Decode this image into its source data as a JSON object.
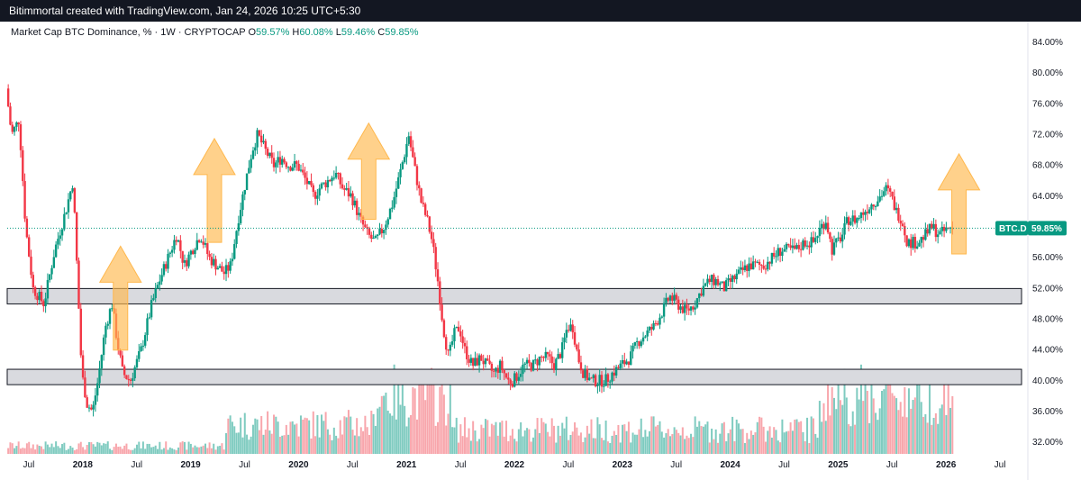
{
  "header": {
    "banner": "Bitimmortal created with TradingView.com, Jan 24, 2026 10:25 UTC+5:30"
  },
  "legend": {
    "symbol_text": "Market Cap BTC Dominance, % · 1W · CRYPTOCAP",
    "o_label": "O",
    "o_value": "59.57%",
    "h_label": "H",
    "h_value": "60.08%",
    "l_label": "L",
    "l_value": "59.46%",
    "c_label": "C",
    "c_value": "59.85%"
  },
  "price_tag": {
    "ticker": "BTC.D",
    "value": "59.85%"
  },
  "colors": {
    "up": "#089981",
    "down": "#f23645",
    "volume_up": "#7fcbc0",
    "volume_down": "#f8a6ac",
    "arrow": "#ffb84d",
    "zone_fill": "#d9dadf",
    "last_price_line": "#089981"
  },
  "chart_data": {
    "type": "candlestick",
    "title": "Market Cap BTC Dominance",
    "ylim": [
      30.5,
      86.0
    ],
    "y_ticks": [
      "84.00%",
      "80.00%",
      "76.00%",
      "72.00%",
      "68.00%",
      "64.00%",
      "60.00%",
      "56.00%",
      "52.00%",
      "48.00%",
      "44.00%",
      "40.00%",
      "36.00%",
      "32.00%"
    ],
    "y_tick_values": [
      84,
      80,
      76,
      72,
      68,
      64,
      60,
      56,
      52,
      48,
      44,
      40,
      36,
      32
    ],
    "x_ticks": [
      {
        "label": "Jul",
        "t": 2017.5,
        "bold": false
      },
      {
        "label": "2018",
        "t": 2018.0,
        "bold": true
      },
      {
        "label": "Jul",
        "t": 2018.5,
        "bold": false
      },
      {
        "label": "2019",
        "t": 2019.0,
        "bold": true
      },
      {
        "label": "Jul",
        "t": 2019.5,
        "bold": false
      },
      {
        "label": "2020",
        "t": 2020.0,
        "bold": true
      },
      {
        "label": "Jul",
        "t": 2020.5,
        "bold": false
      },
      {
        "label": "2021",
        "t": 2021.0,
        "bold": true
      },
      {
        "label": "Jul",
        "t": 2021.5,
        "bold": false
      },
      {
        "label": "2022",
        "t": 2022.0,
        "bold": true
      },
      {
        "label": "Jul",
        "t": 2022.5,
        "bold": false
      },
      {
        "label": "2023",
        "t": 2023.0,
        "bold": true
      },
      {
        "label": "Jul",
        "t": 2023.5,
        "bold": false
      },
      {
        "label": "2024",
        "t": 2024.0,
        "bold": true
      },
      {
        "label": "Jul",
        "t": 2024.5,
        "bold": false
      },
      {
        "label": "2025",
        "t": 2025.0,
        "bold": true
      },
      {
        "label": "Jul",
        "t": 2025.5,
        "bold": false
      },
      {
        "label": "2026",
        "t": 2026.0,
        "bold": true
      },
      {
        "label": "Jul",
        "t": 2026.5,
        "bold": false
      }
    ],
    "xlim": [
      2017.3,
      2026.75
    ],
    "last_price": 59.85,
    "support_zones": [
      {
        "low": 50.0,
        "high": 52.0
      },
      {
        "low": 39.5,
        "high": 41.5
      }
    ],
    "arrows": [
      {
        "t": 2018.35,
        "from": 44.0,
        "to": 57.5
      },
      {
        "t": 2019.22,
        "from": 58.0,
        "to": 71.5
      },
      {
        "t": 2020.65,
        "from": 61.0,
        "to": 73.5
      },
      {
        "t": 2026.12,
        "from": 56.5,
        "to": 69.5
      }
    ],
    "path_points": [
      [
        2017.3,
        78
      ],
      [
        2017.35,
        72
      ],
      [
        2017.42,
        74
      ],
      [
        2017.48,
        60
      ],
      [
        2017.55,
        52
      ],
      [
        2017.65,
        50
      ],
      [
        2017.75,
        57
      ],
      [
        2017.85,
        62
      ],
      [
        2017.92,
        66
      ],
      [
        2018.0,
        41
      ],
      [
        2018.05,
        37
      ],
      [
        2018.1,
        36
      ],
      [
        2018.15,
        40
      ],
      [
        2018.22,
        47
      ],
      [
        2018.28,
        50
      ],
      [
        2018.33,
        45
      ],
      [
        2018.38,
        41
      ],
      [
        2018.45,
        40
      ],
      [
        2018.55,
        44
      ],
      [
        2018.65,
        50
      ],
      [
        2018.72,
        53
      ],
      [
        2018.8,
        56
      ],
      [
        2018.88,
        59
      ],
      [
        2018.95,
        55
      ],
      [
        2019.02,
        57
      ],
      [
        2019.1,
        59
      ],
      [
        2019.18,
        56
      ],
      [
        2019.25,
        55
      ],
      [
        2019.32,
        54
      ],
      [
        2019.38,
        55
      ],
      [
        2019.45,
        61
      ],
      [
        2019.52,
        66
      ],
      [
        2019.58,
        70
      ],
      [
        2019.63,
        72
      ],
      [
        2019.7,
        70
      ],
      [
        2019.78,
        68
      ],
      [
        2019.85,
        69
      ],
      [
        2019.92,
        68
      ],
      [
        2020.0,
        68
      ],
      [
        2020.08,
        66
      ],
      [
        2020.15,
        64
      ],
      [
        2020.2,
        65
      ],
      [
        2020.28,
        66
      ],
      [
        2020.35,
        67
      ],
      [
        2020.42,
        65
      ],
      [
        2020.5,
        64
      ],
      [
        2020.58,
        61
      ],
      [
        2020.65,
        59
      ],
      [
        2020.72,
        58
      ],
      [
        2020.8,
        60
      ],
      [
        2020.88,
        63
      ],
      [
        2020.95,
        67
      ],
      [
        2021.0,
        70
      ],
      [
        2021.03,
        72
      ],
      [
        2021.08,
        68
      ],
      [
        2021.15,
        63
      ],
      [
        2021.2,
        61
      ],
      [
        2021.25,
        58
      ],
      [
        2021.3,
        53
      ],
      [
        2021.35,
        47
      ],
      [
        2021.4,
        43
      ],
      [
        2021.45,
        46
      ],
      [
        2021.5,
        47
      ],
      [
        2021.55,
        44
      ],
      [
        2021.62,
        42
      ],
      [
        2021.7,
        43
      ],
      [
        2021.75,
        42
      ],
      [
        2021.82,
        41
      ],
      [
        2021.88,
        42
      ],
      [
        2021.95,
        40
      ],
      [
        2022.0,
        40
      ],
      [
        2022.05,
        41
      ],
      [
        2022.1,
        42
      ],
      [
        2022.18,
        42
      ],
      [
        2022.25,
        43
      ],
      [
        2022.32,
        43
      ],
      [
        2022.38,
        42
      ],
      [
        2022.45,
        44
      ],
      [
        2022.5,
        47
      ],
      [
        2022.55,
        47
      ],
      [
        2022.6,
        43
      ],
      [
        2022.65,
        41
      ],
      [
        2022.72,
        40
      ],
      [
        2022.78,
        40
      ],
      [
        2022.85,
        40
      ],
      [
        2022.92,
        41
      ],
      [
        2023.0,
        42
      ],
      [
        2023.08,
        43
      ],
      [
        2023.15,
        45
      ],
      [
        2023.22,
        46
      ],
      [
        2023.3,
        47
      ],
      [
        2023.38,
        49
      ],
      [
        2023.45,
        51
      ],
      [
        2023.52,
        50
      ],
      [
        2023.6,
        49
      ],
      [
        2023.68,
        50
      ],
      [
        2023.75,
        52
      ],
      [
        2023.82,
        53
      ],
      [
        2023.88,
        53
      ],
      [
        2023.95,
        52
      ],
      [
        2024.02,
        53
      ],
      [
        2024.1,
        54
      ],
      [
        2024.18,
        55
      ],
      [
        2024.25,
        55
      ],
      [
        2024.32,
        55
      ],
      [
        2024.4,
        56
      ],
      [
        2024.48,
        57
      ],
      [
        2024.55,
        57
      ],
      [
        2024.62,
        57
      ],
      [
        2024.7,
        58
      ],
      [
        2024.78,
        58
      ],
      [
        2024.85,
        60
      ],
      [
        2024.9,
        61
      ],
      [
        2024.95,
        57
      ],
      [
        2025.0,
        58
      ],
      [
        2025.05,
        59
      ],
      [
        2025.1,
        61
      ],
      [
        2025.18,
        61
      ],
      [
        2025.25,
        62
      ],
      [
        2025.32,
        63
      ],
      [
        2025.4,
        64
      ],
      [
        2025.45,
        65
      ],
      [
        2025.5,
        64
      ],
      [
        2025.55,
        62
      ],
      [
        2025.6,
        61
      ],
      [
        2025.65,
        58
      ],
      [
        2025.7,
        58
      ],
      [
        2025.75,
        58
      ],
      [
        2025.82,
        59
      ],
      [
        2025.88,
        60
      ],
      [
        2025.95,
        59
      ],
      [
        2026.0,
        59.5
      ],
      [
        2026.05,
        59.85
      ]
    ]
  }
}
